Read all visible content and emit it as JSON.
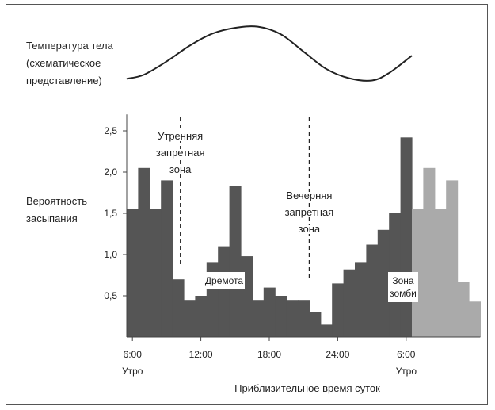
{
  "chart_data": {
    "type": "bar",
    "title": "",
    "temperature_label": [
      "Температура тела",
      "(схематическое",
      "представление)"
    ],
    "ylabel": [
      "Вероятность",
      "засыпания"
    ],
    "xlabel": "Приблизительное время суток",
    "ylim": [
      0,
      2.7
    ],
    "yticks": [
      "0,5",
      "1,0",
      "1,5",
      "2,0",
      "2,5"
    ],
    "ytick_values": [
      0.5,
      1.0,
      1.5,
      2.0,
      2.5
    ],
    "xticks": [
      {
        "hour": 6,
        "label": "6:00",
        "sub": "Утро"
      },
      {
        "hour": 12,
        "label": "12:00",
        "sub": ""
      },
      {
        "hour": 18,
        "label": "18:00",
        "sub": ""
      },
      {
        "hour": 24,
        "label": "24:00",
        "sub": ""
      },
      {
        "hour": 30,
        "label": "6:00",
        "sub": "Утро"
      }
    ],
    "bin_hours": 1,
    "start_hour": 5.5,
    "values": [
      1.55,
      2.05,
      1.55,
      1.9,
      0.7,
      0.45,
      0.5,
      0.9,
      1.1,
      1.83,
      0.98,
      0.45,
      0.6,
      0.5,
      0.45,
      0.45,
      0.3,
      0.15,
      0.65,
      0.82,
      0.9,
      1.12,
      1.3,
      1.5,
      2.42,
      1.55,
      2.05,
      1.55,
      1.9,
      0.67,
      0.43
    ],
    "light_from_index": 25,
    "series_colors": {
      "main": "#555555",
      "zombie": "#aaaaaa"
    },
    "forbidden_zones": [
      {
        "hour": 10.2,
        "label": [
          "Утренняя",
          "запретная",
          "зона"
        ]
      },
      {
        "hour": 21.5,
        "label": [
          "Вечерняя",
          "запретная",
          "зона"
        ]
      }
    ],
    "boxes": [
      {
        "label": [
          "Дремота"
        ]
      },
      {
        "label": [
          "Зона",
          "зомби"
        ]
      }
    ],
    "temperature_curve": [
      [
        5.5,
        0.05
      ],
      [
        7,
        0.12
      ],
      [
        9,
        0.35
      ],
      [
        11,
        0.62
      ],
      [
        13,
        0.83
      ],
      [
        15,
        0.93
      ],
      [
        17,
        0.95
      ],
      [
        19,
        0.82
      ],
      [
        21,
        0.52
      ],
      [
        23,
        0.22
      ],
      [
        25,
        0.06
      ],
      [
        27,
        0.02
      ],
      [
        28.5,
        0.15
      ],
      [
        30.5,
        0.45
      ]
    ]
  }
}
